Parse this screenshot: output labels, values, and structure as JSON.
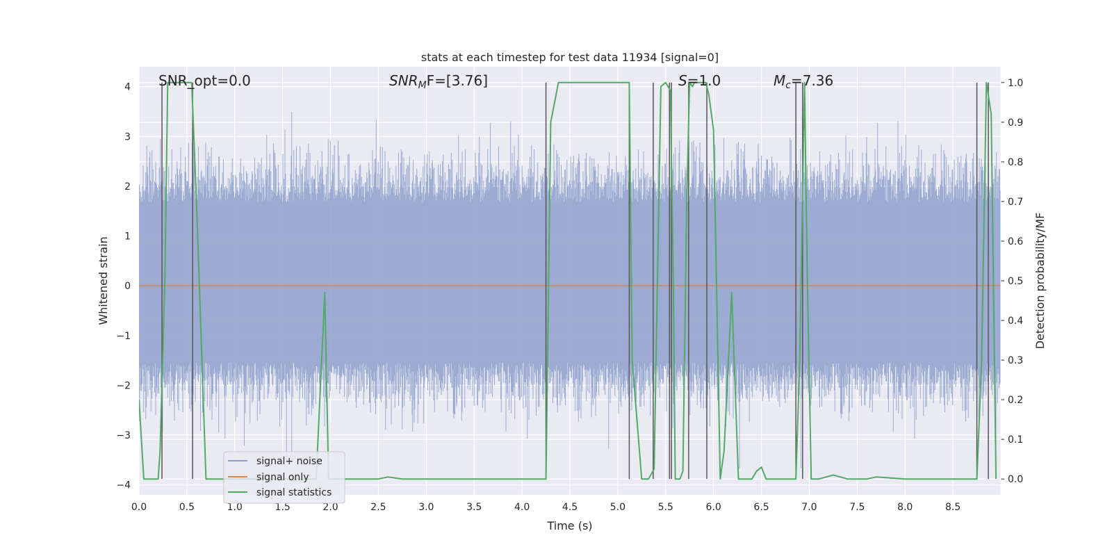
{
  "chart_data": {
    "type": "line",
    "title": "stats at each timestep for test data 11934 [signal=0]",
    "xlabel": "Time (s)",
    "ylabel": "Whitened strain",
    "ylabel_right": "Detection probability/MF",
    "xlim": [
      0.0,
      9.0
    ],
    "ylim": [
      -4.2,
      4.4
    ],
    "ylim_right": [
      -0.04,
      1.04
    ],
    "x_ticks": [
      "0.0",
      "0.5",
      "1.0",
      "1.5",
      "2.0",
      "2.5",
      "3.0",
      "3.5",
      "4.0",
      "4.5",
      "5.0",
      "5.5",
      "6.0",
      "6.5",
      "7.0",
      "7.5",
      "8.0",
      "8.5"
    ],
    "y_ticks": [
      "−4",
      "−3",
      "−2",
      "−1",
      "0",
      "1",
      "2",
      "3",
      "4"
    ],
    "y_ticks_right": [
      "0.0",
      "0.1",
      "0.2",
      "0.3",
      "0.4",
      "0.5",
      "0.6",
      "0.7",
      "0.8",
      "0.9",
      "1.0"
    ],
    "annotations": {
      "snr_opt": "SNR_opt=0.0",
      "snr_mf_main": "SNR",
      "snr_mf_sub": "M",
      "snr_mf_rest": "F=[3.76]",
      "s_main": "S",
      "s_rest": "=1.0",
      "mc_main": "M",
      "mc_sub": "c",
      "mc_rest": "=7.36"
    },
    "legend": {
      "placement": "lower-left",
      "entries": [
        "signal+ noise",
        "signal only",
        "signal statistics"
      ]
    },
    "colors": {
      "noise": "#8da0cb",
      "signal_only": "#dd8452",
      "stats": "#55a868",
      "vlines": "#555555",
      "plot_bg": "#eaeaf2",
      "grid": "#ffffff"
    },
    "noise_series": {
      "name": "signal+ noise",
      "description_envelope_typical": [
        -2.2,
        2.4
      ],
      "envelope_extreme": [
        -3.7,
        3.8
      ]
    },
    "signal_only_series": {
      "name": "signal only",
      "x": [
        0.0,
        9.0
      ],
      "y": [
        0.0,
        0.0
      ]
    },
    "stats_series": {
      "name": "signal statistics",
      "axis": "right",
      "x": [
        0.0,
        0.05,
        0.2,
        0.22,
        0.27,
        0.3,
        0.33,
        0.55,
        0.6,
        0.7,
        1.85,
        1.94,
        1.98,
        2.0,
        2.5,
        2.6,
        2.75,
        4.25,
        4.3,
        4.38,
        5.12,
        5.15,
        5.25,
        5.32,
        5.38,
        5.45,
        5.5,
        5.55,
        5.58,
        5.6,
        5.65,
        5.68,
        5.72,
        5.75,
        5.78,
        5.8,
        5.92,
        5.95,
        6.0,
        6.07,
        6.11,
        6.19,
        6.26,
        6.3,
        6.4,
        6.45,
        6.5,
        6.55,
        6.86,
        6.9,
        6.95,
        6.98,
        7.02,
        7.1,
        7.25,
        7.4,
        7.6,
        7.7,
        8.0,
        8.2,
        8.75,
        8.8,
        8.85,
        8.9,
        8.95
      ],
      "y": [
        0.2,
        0.0,
        0.0,
        0.07,
        0.5,
        1.0,
        1.0,
        1.0,
        0.7,
        0.0,
        0.0,
        0.47,
        0.0,
        0.0,
        0.0,
        0.005,
        0.0,
        0.0,
        0.9,
        1.0,
        1.0,
        0.3,
        0.0,
        0.0,
        0.025,
        0.99,
        1.0,
        0.98,
        0.5,
        0.0,
        0.0,
        0.02,
        0.7,
        1.0,
        0.99,
        1.0,
        1.0,
        0.97,
        0.88,
        0.0,
        0.07,
        0.47,
        0.0,
        0.0,
        0.0,
        0.02,
        0.03,
        0.0,
        0.0,
        0.3,
        1.0,
        0.5,
        0.0,
        0.0,
        0.01,
        0.0,
        0.0,
        0.005,
        0.0,
        0.0,
        0.0,
        0.3,
        1.0,
        0.92,
        0.0
      ]
    },
    "vlines_x": [
      0.24,
      0.56,
      4.25,
      5.12,
      5.37,
      5.54,
      5.56,
      5.74,
      5.93,
      6.86,
      6.93,
      8.75,
      8.87
    ]
  }
}
